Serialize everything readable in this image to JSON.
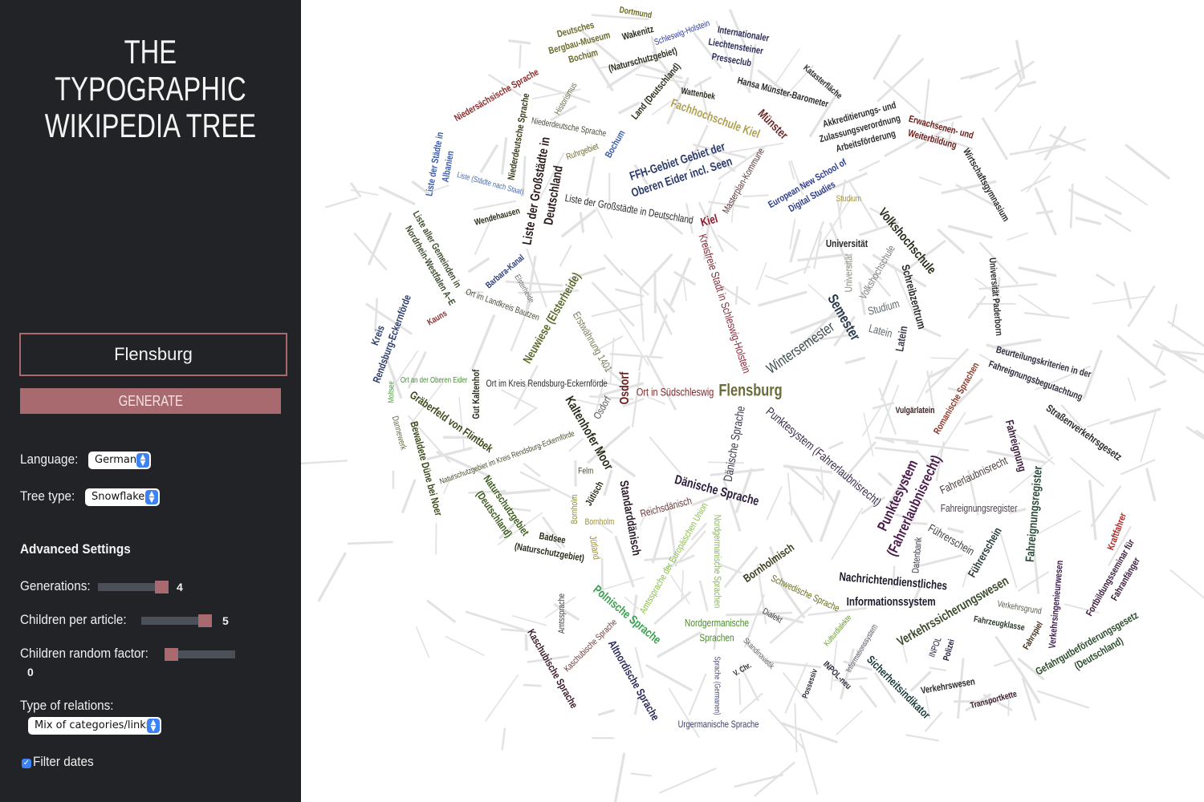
{
  "sidebar": {
    "title_line1": "THE TYPOGRAPHIC",
    "title_line2": "WIKIPEDIA TREE",
    "article_value": "Flensburg",
    "generate_label": "GENERATE",
    "language_label": "Language:",
    "language_value": "German",
    "tree_type_label": "Tree type:",
    "tree_type_value": "Snowflake",
    "advanced_heading": "Advanced Settings",
    "generations_label": "Generations:",
    "generations_value": "4",
    "children_label": "Children per article:",
    "children_value": "5",
    "random_label": "Children random factor:",
    "random_value": "0",
    "relations_label": "Type of relations:",
    "relations_value": "Mix of categories/links",
    "filter_dates_label": "Filter dates",
    "filter_dates_checked": true,
    "accent_color": "#a86a6f",
    "background_color": "#212327"
  },
  "tree": {
    "root": "Flensburg",
    "labels": [
      {
        "text": "Flensburg",
        "color": "#6b6b3a"
      },
      {
        "text": "Ort in Südschleswig",
        "color": "#7a2a2a"
      },
      {
        "text": "Osdorf",
        "color": "#6b1f1f"
      },
      {
        "text": "Kreisfreie Stadt in Schleswig-Holstein",
        "color": "#8b2a3a"
      },
      {
        "text": "Kiel",
        "color": "#8b1a2a"
      },
      {
        "text": "Wintersemester",
        "color": "#3a4a4a"
      },
      {
        "text": "Semester",
        "color": "#2a3a4a"
      },
      {
        "text": "Punktesystem (Fahrerlaubnisrecht)",
        "color": "#3a2a4a"
      },
      {
        "text": "Dänische Sprache",
        "color": "#3a3a4a"
      },
      {
        "text": "Dänische Sprache",
        "color": "#2a1a3a"
      },
      {
        "text": "Punktesystem",
        "color": "#4a1a4a"
      },
      {
        "text": "(Fahrerlaubnisrecht)",
        "color": "#4a1a4a"
      },
      {
        "text": "Nordgermanische",
        "color": "#4a8a2a"
      },
      {
        "text": "Sprachen",
        "color": "#4a8a2a"
      },
      {
        "text": "Nordgermanische Sprachen",
        "color": "#8ab85a"
      },
      {
        "text": "Polnische Sprache",
        "color": "#3aa050"
      },
      {
        "text": "Standarddänisch",
        "color": "#2a1a2a"
      },
      {
        "text": "Reichsdänisch",
        "color": "#6a3a3a"
      },
      {
        "text": "Amtssprache der Europäischen Union",
        "color": "#8abf4a"
      },
      {
        "text": "Kaltenhofer Moor",
        "color": "#2a2a1a"
      },
      {
        "text": "Ort im Kreis Rendsburg-Eckernförde",
        "color": "#2a2a2a"
      },
      {
        "text": "Erstwähnung 1401",
        "color": "#7a7a5a"
      },
      {
        "text": "Neuwiese (Elsterheide)",
        "color": "#5a6a2a"
      },
      {
        "text": "Liste der Großstädte in Deutschland",
        "color": "#2a2a2a"
      },
      {
        "text": "Liste der Großstädte in",
        "color": "#2a1a1a"
      },
      {
        "text": "Deutschland",
        "color": "#2a1a1a"
      },
      {
        "text": "FFH-Gebiet Gebiet der",
        "color": "#2a3a6a"
      },
      {
        "text": "Oberen Eider incl. Seen",
        "color": "#2a3a6a"
      },
      {
        "text": "Fachhochschule Kiel",
        "color": "#b0a050"
      },
      {
        "text": "Münster",
        "color": "#6a2a2a"
      },
      {
        "text": "Universität",
        "color": "#2a2a2a"
      },
      {
        "text": "Universität",
        "color": "#8a8a7a"
      },
      {
        "text": "Volkshochschule",
        "color": "#2a2a1a"
      },
      {
        "text": "Volkshochschule",
        "color": "#7a7a7a"
      },
      {
        "text": "Studium",
        "color": "#5a6a6a"
      },
      {
        "text": "Latein",
        "color": "#5a6a6a"
      },
      {
        "text": "Latein",
        "color": "#3a3a4a"
      },
      {
        "text": "Schreibzentrum",
        "color": "#2a2a2a"
      },
      {
        "text": "Vulgärlatein",
        "color": "#3a1a1a"
      },
      {
        "text": "Romanische Sprachen",
        "color": "#8a3a2a"
      },
      {
        "text": "Fahrerlaubnisrecht",
        "color": "#4a3a3a"
      },
      {
        "text": "Fahreignungsregister",
        "color": "#4a3a4a"
      },
      {
        "text": "Führerschein",
        "color": "#3a3a3a"
      },
      {
        "text": "Führerschein",
        "color": "#2a3a3a"
      },
      {
        "text": "Fahreignung",
        "color": "#3a1a3a"
      },
      {
        "text": "Fahreignungsregister",
        "color": "#2a4a3a"
      },
      {
        "text": "Beurteilungskriterien in der",
        "color": "#2a2a3a"
      },
      {
        "text": "Fahreignungsbegutachtung",
        "color": "#2a2a3a"
      },
      {
        "text": "Straßenverkehrsgesetz",
        "color": "#2a2a2a"
      },
      {
        "text": "Nachrichtendienstliches",
        "color": "#1a1a2a"
      },
      {
        "text": "Informationssystem",
        "color": "#1a1a2a"
      },
      {
        "text": "Verkehrssicherungswesen",
        "color": "#3a4a2a"
      },
      {
        "text": "Verkehrswesen",
        "color": "#2a2a2a"
      },
      {
        "text": "Transportkette",
        "color": "#3a1a2a"
      },
      {
        "text": "Gefahrgutbeförderungsgesetz",
        "color": "#2a4a2a"
      },
      {
        "text": "(Deutschland)",
        "color": "#2a4a2a"
      },
      {
        "text": "Fortbildungsseminar für",
        "color": "#3a1a3a"
      },
      {
        "text": "Fahranfänger",
        "color": "#3a1a3a"
      },
      {
        "text": "Kraftfahrer",
        "color": "#b02020"
      },
      {
        "text": "Sicherheitsindikator",
        "color": "#1a3a3a"
      },
      {
        "text": "Bornholmisch",
        "color": "#3a3a1a"
      },
      {
        "text": "Schwedische Sprache",
        "color": "#6a6a1a"
      },
      {
        "text": "Dialekt",
        "color": "#3a3a3a"
      },
      {
        "text": "Urgermanische Sprache",
        "color": "#3a3a6a"
      },
      {
        "text": "Altnordische Sprache",
        "color": "#2a2a5a"
      },
      {
        "text": "Kaschubische Sprache",
        "color": "#3a1a2a"
      },
      {
        "text": "Amtssprache",
        "color": "#3a3a3a"
      },
      {
        "text": "Kaschubische Sprache",
        "color": "#6a3a3a"
      },
      {
        "text": "Naturschutzgebiet",
        "color": "#3a5a1a"
      },
      {
        "text": "(Deutschland)",
        "color": "#3a5a1a"
      },
      {
        "text": "Badsee",
        "color": "#2a2a1a"
      },
      {
        "text": "(Naturschutzgebiet)",
        "color": "#2a2a1a"
      },
      {
        "text": "Bornholm",
        "color": "#8a8a3a"
      },
      {
        "text": "Bornholm",
        "color": "#a0902a"
      },
      {
        "text": "Jütisch",
        "color": "#2a2a1a"
      },
      {
        "text": "Jütland",
        "color": "#a08a2a"
      },
      {
        "text": "Felm",
        "color": "#4a4a2a"
      },
      {
        "text": "Osdorf",
        "color": "#5a5a5a"
      },
      {
        "text": "Bewaldete Düne bei Noer",
        "color": "#3a4a1a"
      },
      {
        "text": "Gräberfeld von Flintbek",
        "color": "#3a4a1a"
      },
      {
        "text": "Gut Kaltenhof",
        "color": "#2a2a1a"
      },
      {
        "text": "Dannewerk",
        "color": "#6a6a4a"
      },
      {
        "text": "Moltsee",
        "color": "#4a9a3a"
      },
      {
        "text": "Ort an der Oberen Eider",
        "color": "#4a8a3a"
      },
      {
        "text": "Kreis",
        "color": "#2a3a6a"
      },
      {
        "text": "Rendsburg-Eckernförde",
        "color": "#2a3a6a"
      },
      {
        "text": "Naturschutzgebiet im Kreis Rendsburg-Eckernförde",
        "color": "#4a4a2a"
      },
      {
        "text": "Kauns",
        "color": "#8a2a2a"
      },
      {
        "text": "Liste aller Gemeinden in",
        "color": "#3a4a2a"
      },
      {
        "text": "Nordrhein-Westfalen A–E",
        "color": "#3a4a2a"
      },
      {
        "text": "Liste (Städte nach Staat)",
        "color": "#4a6aaa"
      },
      {
        "text": "Liste der Städte in",
        "color": "#3a5aaa"
      },
      {
        "text": "Albanien",
        "color": "#3a5aaa"
      },
      {
        "text": "Niedersächsische Sprache",
        "color": "#8a2a2a"
      },
      {
        "text": "Niederdeutsche Sprache",
        "color": "#3a3a1a"
      },
      {
        "text": "Niederdeutsche Sprache",
        "color": "#4a4a3a"
      },
      {
        "text": "Historismus",
        "color": "#6a6a4a"
      },
      {
        "text": "Deutsches",
        "color": "#6a6a2a"
      },
      {
        "text": "Bergbau-Museum",
        "color": "#6a6a2a"
      },
      {
        "text": "Bochum",
        "color": "#6a6a2a"
      },
      {
        "text": "Dortmund",
        "color": "#6a6a1a"
      },
      {
        "text": "Wakenitz",
        "color": "#2a2a1a"
      },
      {
        "text": "(Naturschutzgebiet)",
        "color": "#2a2a1a"
      },
      {
        "text": "Land (Deutschland)",
        "color": "#2a2a1a"
      },
      {
        "text": "Internationaler",
        "color": "#2a2a5a"
      },
      {
        "text": "Liechtensteiner",
        "color": "#2a2a5a"
      },
      {
        "text": "Presseclub",
        "color": "#2a2a5a"
      },
      {
        "text": "Schleswig-Holstein",
        "color": "#2a3a9a"
      },
      {
        "text": "Wattenbek",
        "color": "#2a2a1a"
      },
      {
        "text": "Hansa Münster-Barometer",
        "color": "#2a2a2a"
      },
      {
        "text": "Katasterfläche",
        "color": "#2a2a2a"
      },
      {
        "text": "Akkreditierungs- und",
        "color": "#2a2a2a"
      },
      {
        "text": "Zulassungsverordnung",
        "color": "#2a2a2a"
      },
      {
        "text": "Arbeitsförderung",
        "color": "#2a2a2a"
      },
      {
        "text": "Erwachsenen- und",
        "color": "#6a1a1a"
      },
      {
        "text": "Weiterbildung",
        "color": "#6a1a1a"
      },
      {
        "text": "Wirtschaftsgymnasium",
        "color": "#2a2a2a"
      },
      {
        "text": "European New School of",
        "color": "#2a3a8a"
      },
      {
        "text": "Digital Studies",
        "color": "#2a3a8a"
      },
      {
        "text": "Studium",
        "color": "#a0903a"
      },
      {
        "text": "Universität Paderborn",
        "color": "#2a2a2a"
      },
      {
        "text": "Masterplan-Kommune",
        "color": "#5a3a3a"
      },
      {
        "text": "Barbara-Kanal",
        "color": "#2a3a7a"
      },
      {
        "text": "Elsterheide",
        "color": "#6a6a6a"
      },
      {
        "text": "Ort im Landkreis Bautzen",
        "color": "#4a4a3a"
      },
      {
        "text": "Wendehausen",
        "color": "#2a2a1a"
      },
      {
        "text": "Ruhrgebiet",
        "color": "#6a6a2a"
      },
      {
        "text": "Bochum",
        "color": "#3a5aaa"
      },
      {
        "text": "INPOL-neu",
        "color": "#2a2a3a"
      },
      {
        "text": "Possessiv",
        "color": "#2a2a3a"
      },
      {
        "text": "Skandinavistik",
        "color": "#5a5a5a"
      },
      {
        "text": "V. Chr.",
        "color": "#2a2a2a"
      },
      {
        "text": "Sprache (Germanen)",
        "color": "#4a4a7a"
      },
      {
        "text": "Fahrzeugklasse",
        "color": "#2a3a2a"
      },
      {
        "text": "Fahrspiel",
        "color": "#3a2a1a"
      },
      {
        "text": "Verkehrsgrund",
        "color": "#5a5a4a"
      },
      {
        "text": "Datenbank",
        "color": "#3a3a4a"
      },
      {
        "text": "Polizei",
        "color": "#1a1a3a"
      },
      {
        "text": "INPOL",
        "color": "#1a1a3a"
      },
      {
        "text": "Verkehrsingenieurwesen",
        "color": "#3a1a4a"
      },
      {
        "text": "Informationssystem",
        "color": "#5a5a6a"
      },
      {
        "text": "Kulturdialekte",
        "color": "#6a9a2a"
      }
    ]
  }
}
